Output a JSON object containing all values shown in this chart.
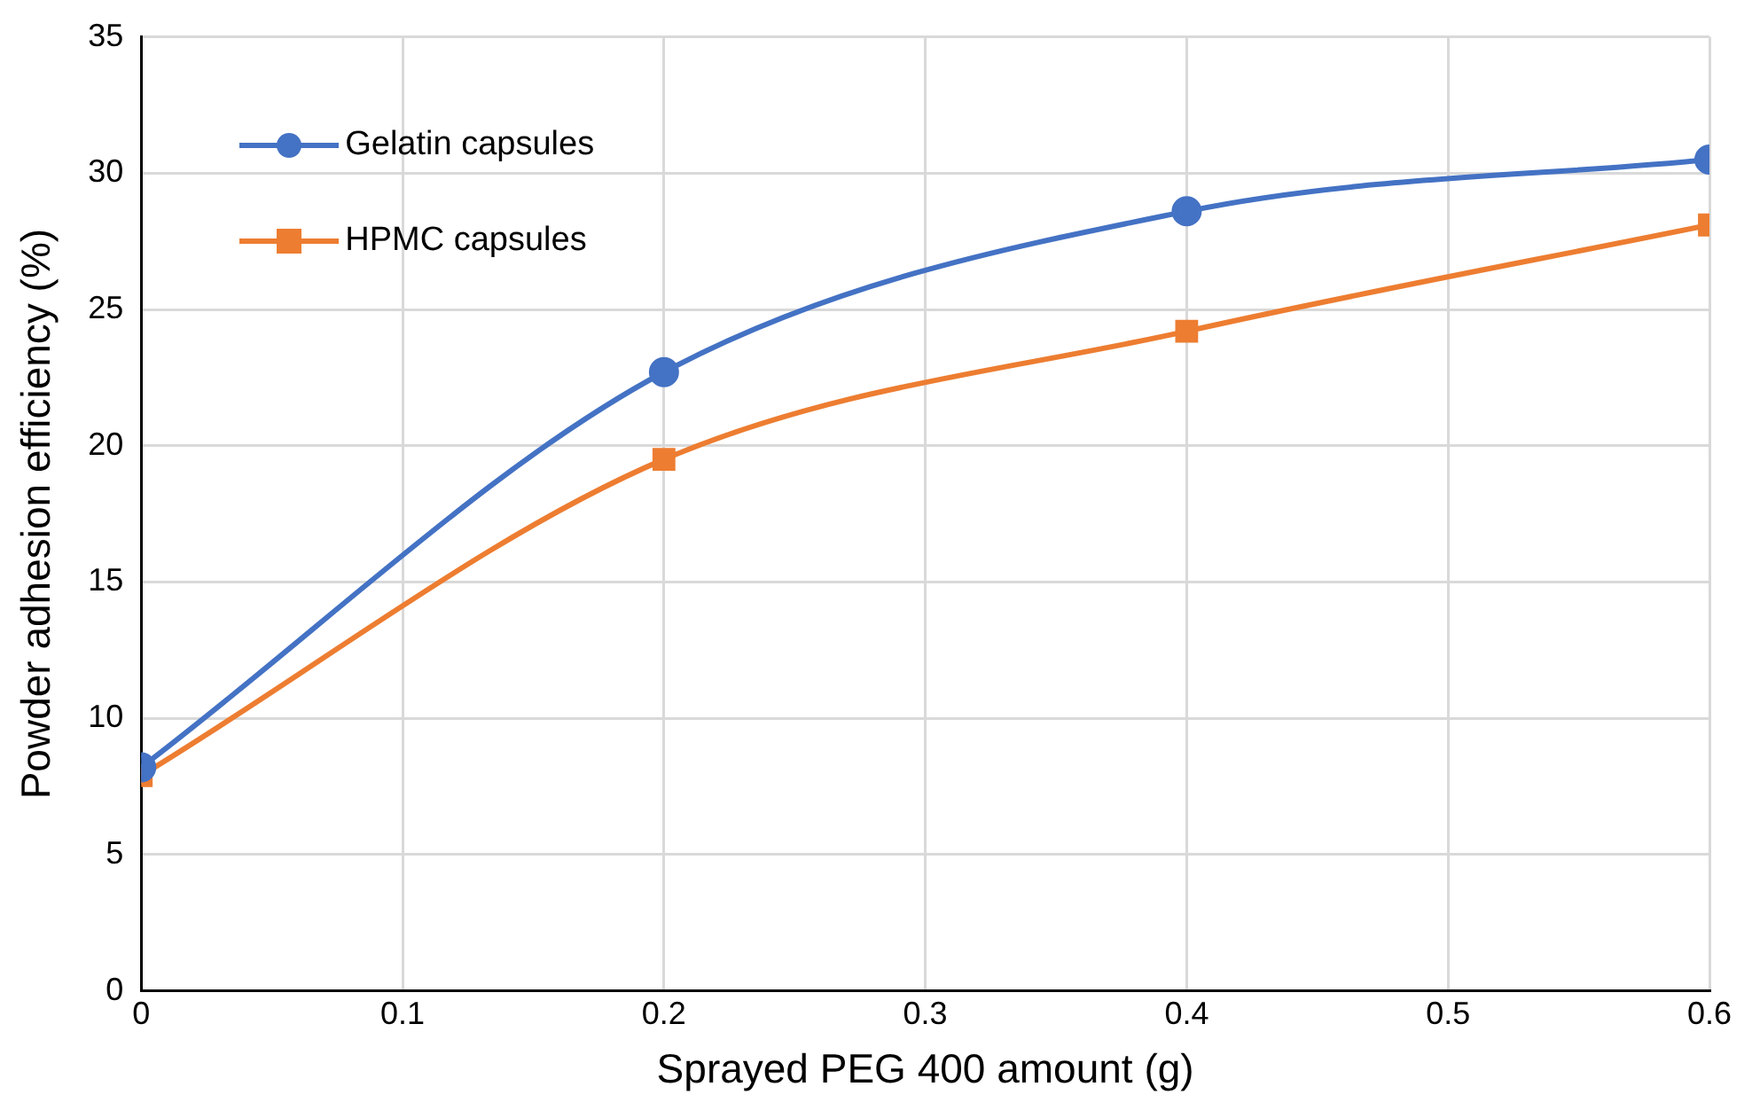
{
  "chart_data": {
    "type": "line",
    "xlabel": "Sprayed PEG 400 amount (g)",
    "ylabel": "Powder adhesion efficiency (%)",
    "x": [
      0,
      0.2,
      0.4,
      0.6
    ],
    "series": [
      {
        "name": "Gelatin capsules",
        "color": "#4472c4",
        "marker": "circle",
        "values": [
          8.2,
          22.7,
          28.6,
          30.5
        ]
      },
      {
        "name": "HPMC capsules",
        "color": "#ed7d31",
        "marker": "square",
        "values": [
          7.9,
          19.5,
          24.2,
          28.1
        ]
      }
    ],
    "xlim": [
      0,
      0.6
    ],
    "xticks": [
      0,
      0.1,
      0.2,
      0.3,
      0.4,
      0.5,
      0.6
    ],
    "ylim": [
      0,
      35
    ],
    "yticks": [
      0,
      5,
      10,
      15,
      20,
      25,
      30,
      35
    ],
    "grid": true,
    "legend": "top left",
    "line_style": "solid"
  }
}
